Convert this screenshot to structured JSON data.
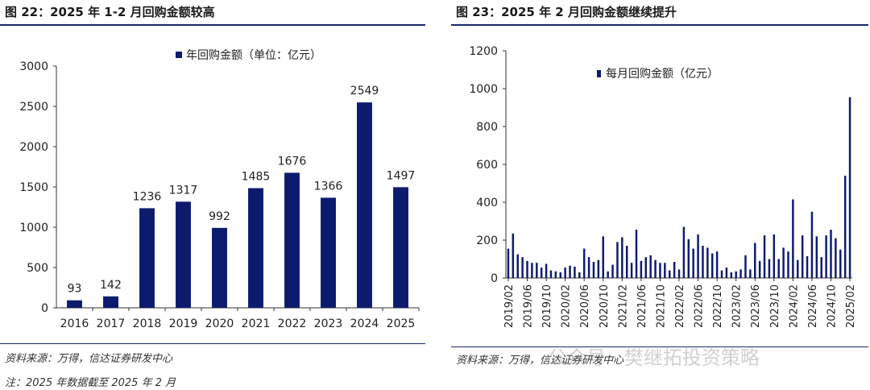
{
  "colors": {
    "bar": "#0d1b6e",
    "axis": "#333333",
    "rule": "#1a2a6c"
  },
  "left": {
    "title": "图 22：2025 年 1-2 月回购金额较高",
    "source": "资料来源：万得，信达证券研发中心",
    "note": "注：2025 年数据截至 2025 年 2 月",
    "chart_data": {
      "type": "bar",
      "legend": "年回购金额（单位：亿元）",
      "legend_position": "top-right",
      "categories": [
        "2016",
        "2017",
        "2018",
        "2019",
        "2020",
        "2021",
        "2022",
        "2023",
        "2024",
        "2025"
      ],
      "values": [
        93,
        142,
        1236,
        1317,
        992,
        1485,
        1676,
        1366,
        2549,
        1497
      ],
      "data_labels": [
        "93",
        "142",
        "1236",
        "1317",
        "992",
        "1485",
        "1676",
        "1366",
        "2549",
        "1497"
      ],
      "ylim": [
        0,
        3000
      ],
      "yticks": [
        0,
        500,
        1000,
        1500,
        2000,
        2500,
        3000
      ],
      "ytick_labels": [
        "0",
        "500",
        "1000",
        "1500",
        "2000",
        "2500",
        "3000"
      ],
      "grid": false
    }
  },
  "right": {
    "title": "图 23：2025 年 2 月回购金额继续提升",
    "source": "资料来源：万得，信达证券研发中心",
    "watermark": "公众号 · 樊继拓投资策略",
    "chart_data": {
      "type": "bar",
      "legend": "每月回购金额（亿元）",
      "legend_position": "top-left",
      "x": [
        "2019/02",
        "2019/03",
        "2019/04",
        "2019/05",
        "2019/06",
        "2019/07",
        "2019/08",
        "2019/09",
        "2019/10",
        "2019/11",
        "2019/12",
        "2020/01",
        "2020/02",
        "2020/03",
        "2020/04",
        "2020/05",
        "2020/06",
        "2020/07",
        "2020/08",
        "2020/09",
        "2020/10",
        "2020/11",
        "2020/12",
        "2021/01",
        "2021/02",
        "2021/03",
        "2021/04",
        "2021/05",
        "2021/06",
        "2021/07",
        "2021/08",
        "2021/09",
        "2021/10",
        "2021/11",
        "2021/12",
        "2022/01",
        "2022/02",
        "2022/03",
        "2022/04",
        "2022/05",
        "2022/06",
        "2022/07",
        "2022/08",
        "2022/09",
        "2022/10",
        "2022/11",
        "2022/12",
        "2023/01",
        "2023/02",
        "2023/03",
        "2023/04",
        "2023/05",
        "2023/06",
        "2023/07",
        "2023/08",
        "2023/09",
        "2023/10",
        "2023/11",
        "2023/12",
        "2024/01",
        "2024/02",
        "2024/03",
        "2024/04",
        "2024/05",
        "2024/06",
        "2024/07",
        "2024/08",
        "2024/09",
        "2024/10",
        "2024/11",
        "2024/12",
        "2025/01",
        "2025/02"
      ],
      "values": [
        155,
        235,
        125,
        110,
        90,
        80,
        80,
        55,
        75,
        40,
        35,
        30,
        55,
        65,
        60,
        30,
        155,
        110,
        85,
        95,
        220,
        35,
        70,
        190,
        215,
        170,
        80,
        255,
        90,
        110,
        120,
        95,
        80,
        80,
        40,
        85,
        45,
        270,
        205,
        155,
        230,
        170,
        160,
        130,
        140,
        40,
        55,
        30,
        35,
        45,
        120,
        45,
        185,
        90,
        225,
        100,
        230,
        100,
        160,
        140,
        415,
        95,
        225,
        115,
        350,
        220,
        110,
        225,
        255,
        210,
        150,
        540,
        955
      ],
      "xtick_labels": [
        "2019/02",
        "2019/06",
        "2019/10",
        "2020/02",
        "2020/06",
        "2020/10",
        "2021/02",
        "2021/06",
        "2021/10",
        "2022/02",
        "2022/06",
        "2022/10",
        "2023/02",
        "2023/06",
        "2023/10",
        "2024/02",
        "2024/06",
        "2024/10",
        "2025/02"
      ],
      "ylim": [
        0,
        1200
      ],
      "yticks": [
        0,
        200,
        400,
        600,
        800,
        1000,
        1200
      ],
      "ytick_labels": [
        "0",
        "200",
        "400",
        "600",
        "800",
        "1000",
        "1200"
      ],
      "grid": false
    }
  }
}
